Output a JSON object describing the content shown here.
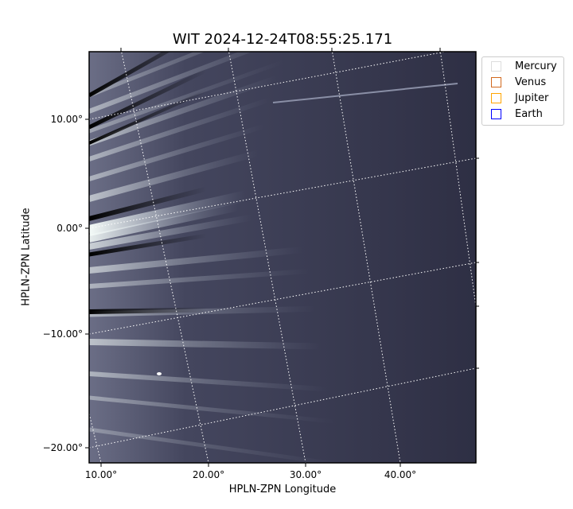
{
  "chart_data": {
    "type": "image",
    "title": "WIT 2024-12-24T08:55:25.171",
    "xlabel": "HPLN-ZPN Longitude",
    "ylabel": "HPLN-ZPN Latitude",
    "xticks": [
      "10.00°",
      "20.00°",
      "30.00°",
      "40.00°"
    ],
    "yticks": [
      "10.00°",
      "0.00°",
      "−10.00°",
      "−20.00°"
    ],
    "colormap": "bone",
    "grid": true,
    "legend": {
      "placement": "outside-top-right",
      "entries": [
        {
          "name": "Mercury",
          "color": "#dddddd"
        },
        {
          "name": "Venus",
          "color": "#d2691e"
        },
        {
          "name": "Jupiter",
          "color": "#ffa500"
        },
        {
          "name": "Earth",
          "color": "#0000ff"
        }
      ]
    }
  }
}
